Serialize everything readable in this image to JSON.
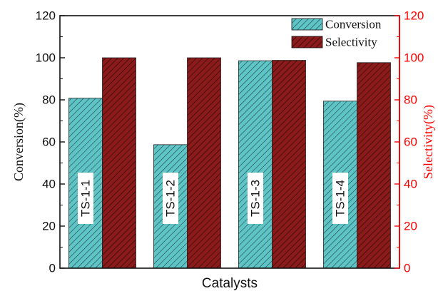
{
  "chart_data": {
    "type": "bar",
    "categories": [
      "TS-1-1",
      "TS-1-2",
      "TS-1-3",
      "TS-1-4"
    ],
    "series": [
      {
        "name": "Conversion",
        "values": [
          80.8,
          58.7,
          98.6,
          79.4
        ],
        "color": "#5ec4c6",
        "axis": "left"
      },
      {
        "name": "Selectivity",
        "values": [
          100.0,
          100.0,
          98.8,
          97.7
        ],
        "color": "#8b1a1a",
        "axis": "right"
      }
    ],
    "xlabel": "Catalysts",
    "ylabel": "Conversion(%)",
    "ylabel_right": "Selectivity(%)",
    "ylim": [
      0,
      120
    ],
    "ylim_right": [
      0,
      120
    ],
    "yticks": [
      0,
      20,
      40,
      60,
      80,
      100,
      120
    ],
    "right_axis_color": "#ff0000",
    "legend_position": "top-right",
    "grid": false
  }
}
